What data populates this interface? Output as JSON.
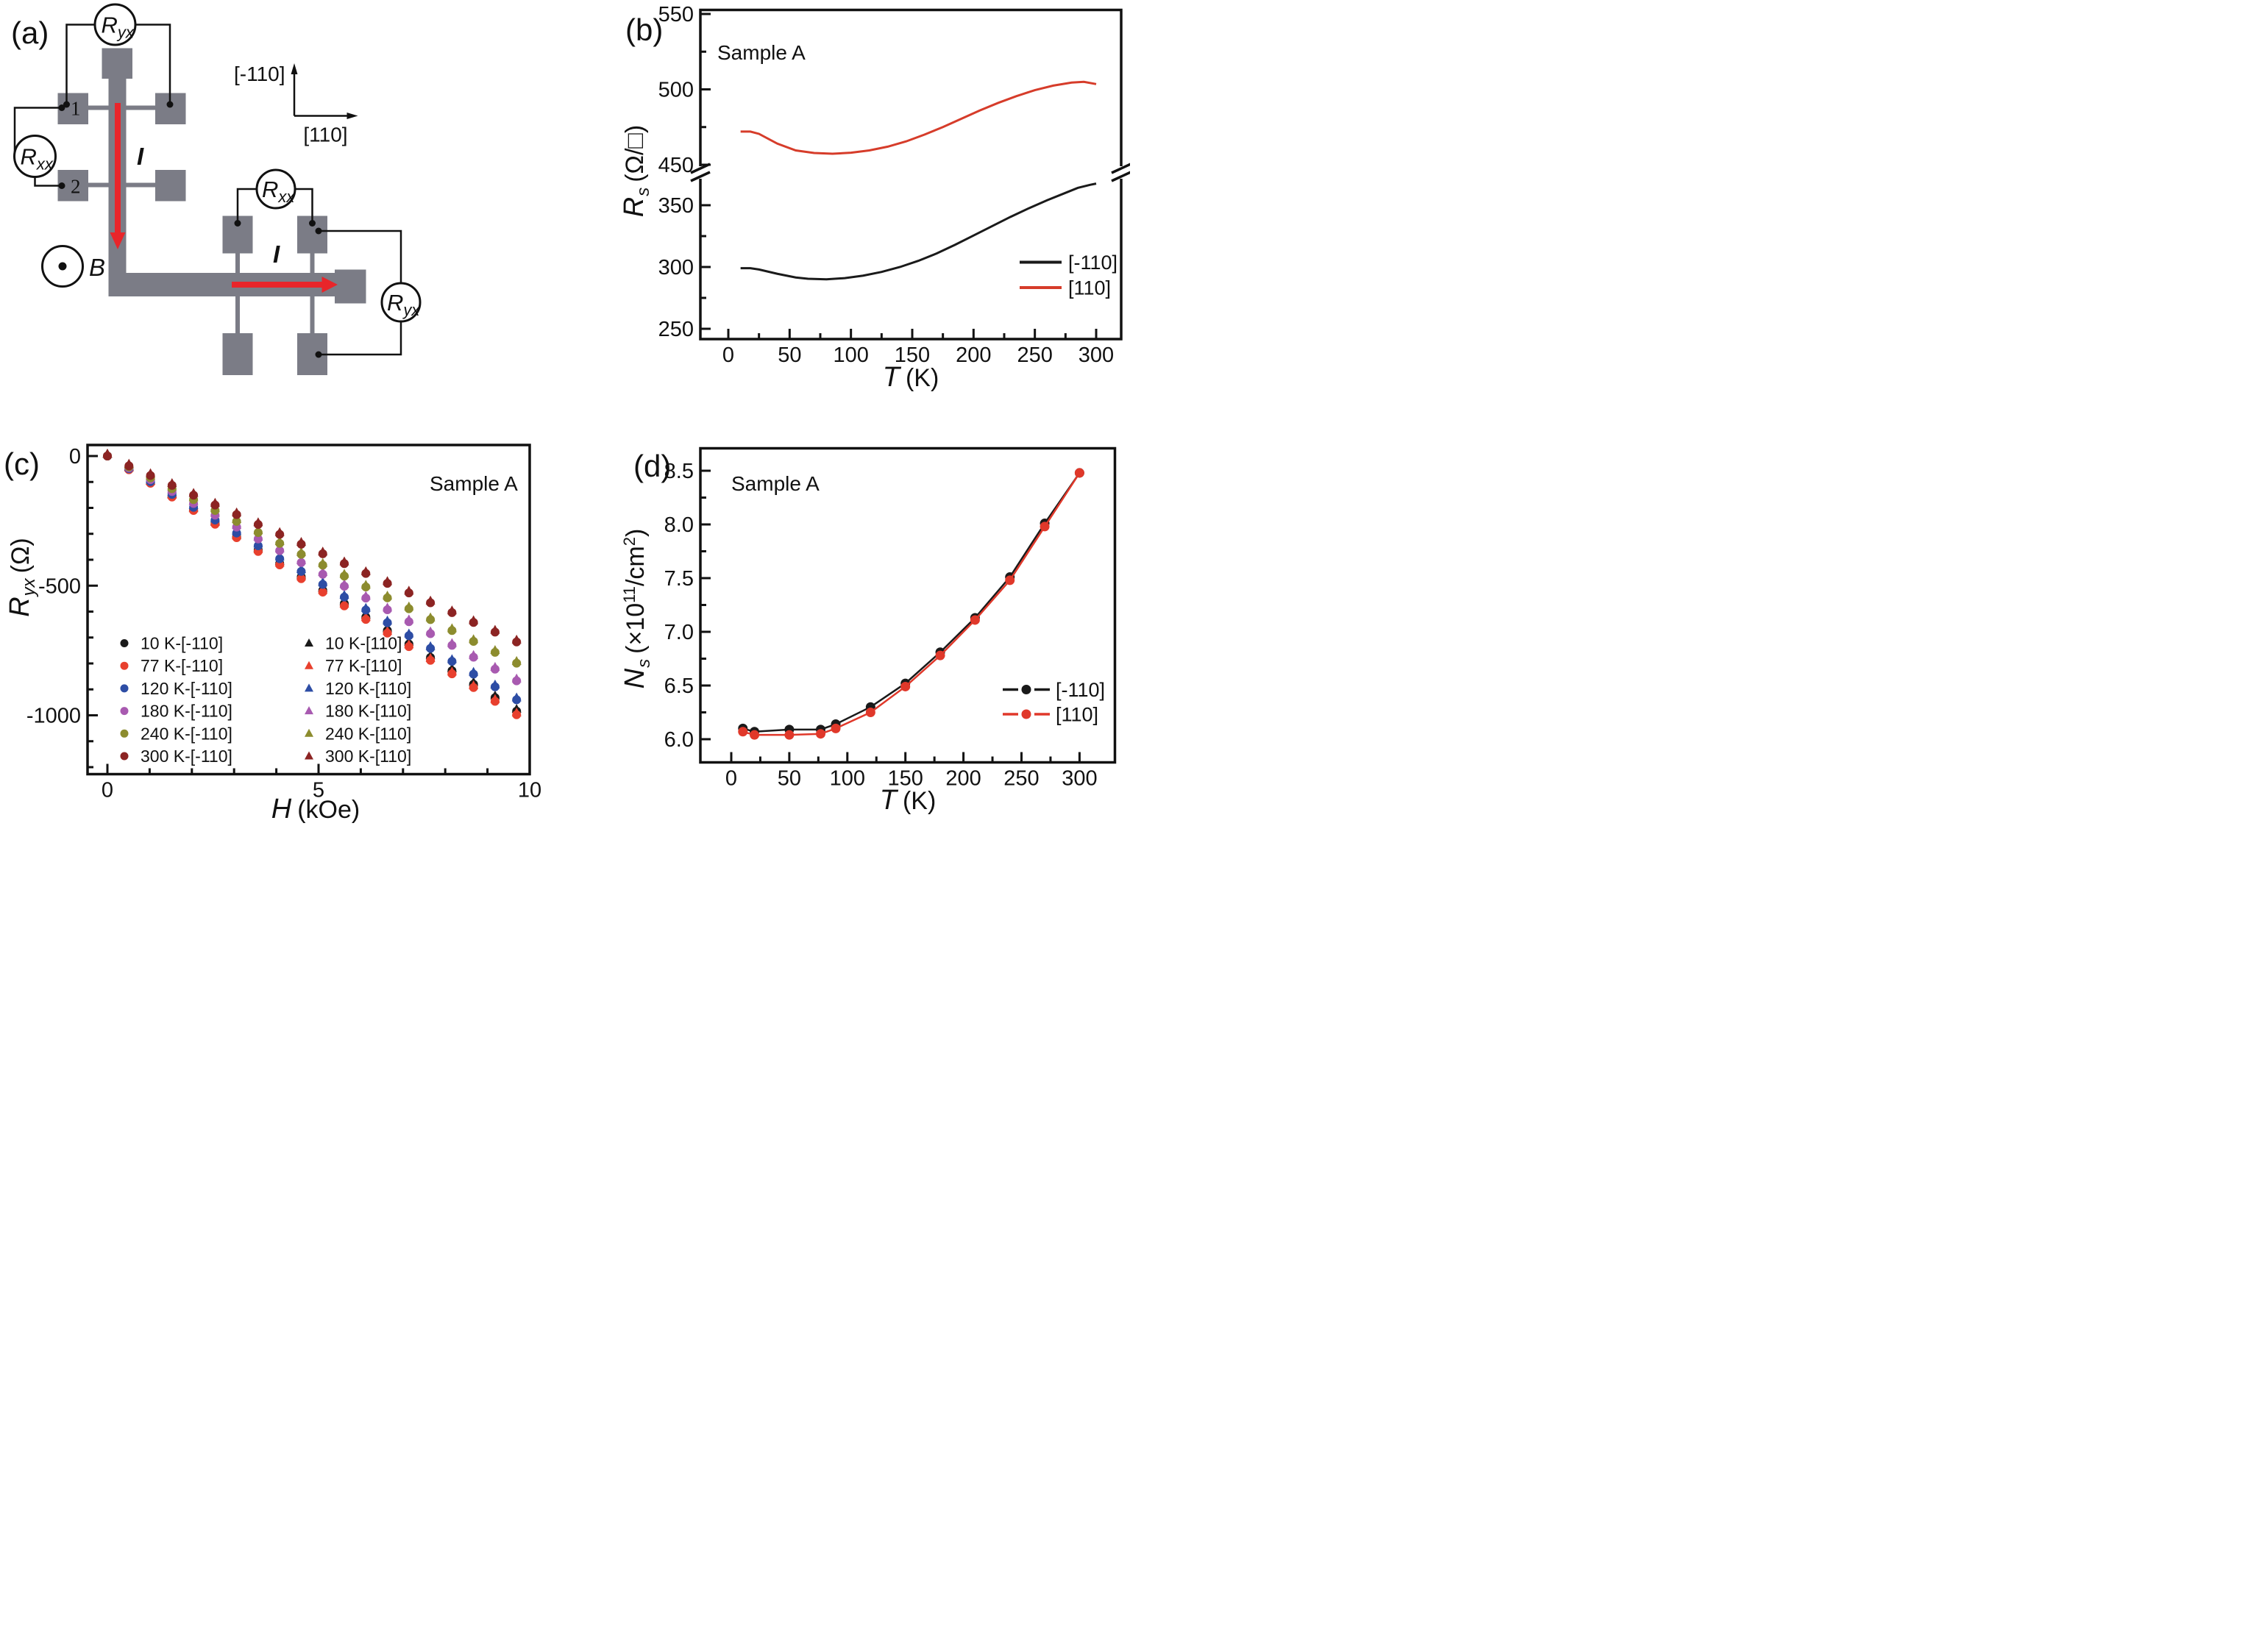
{
  "panel_labels": {
    "a": "(a)",
    "b": "(b)",
    "c": "(c)",
    "d": "(d)"
  },
  "device": {
    "meters": {
      "top": {
        "main": "R",
        "sub": "yx"
      },
      "left": {
        "main": "R",
        "sub": "xx"
      },
      "h_top": {
        "main": "R",
        "sub": "xx"
      },
      "h_right": {
        "main": "R",
        "sub": "yx"
      }
    },
    "contact_1": "1",
    "contact_2": "2",
    "current_label": "I",
    "field_label": "B",
    "crystal_axis_up": "[-110]",
    "crystal_axis_right": "[110]",
    "colors": {
      "bar_gray": "#7b7c86",
      "arrow_red": "#e8252a",
      "contact_number_blue": "#3d55a8",
      "wire_black": "#111111"
    }
  },
  "chart_data": [
    {
      "id": "panel_b",
      "type": "line",
      "panel_label": "(b)",
      "sample_label": "Sample A",
      "xlabel": {
        "symbol": "T",
        "unit": "(K)"
      },
      "ylabel": {
        "symbol": "R",
        "sub": "s",
        "unit": "(Ω/□)"
      },
      "x_axis": {
        "major_ticks": [
          0,
          50,
          100,
          150,
          200,
          250,
          300
        ],
        "minor_ticks": [
          25,
          75,
          125,
          175,
          225,
          275
        ],
        "range": [
          -23,
          321
        ]
      },
      "y_axis": {
        "broken": true,
        "upper_segment": {
          "major_ticks": [
            450,
            500,
            550
          ],
          "minor_ticks": [
            475,
            525
          ],
          "top_value": 553
        },
        "lower_segment": {
          "major_ticks": [
            250,
            300,
            350
          ],
          "minor_ticks": [
            275,
            325
          ],
          "bottom_value": 242
        }
      },
      "legend": [
        {
          "label": "[-110]",
          "color": "#1a1a1a"
        },
        {
          "label": "[110]",
          "color": "#d63c2a"
        }
      ],
      "series": [
        {
          "name": "[-110]",
          "color": "#1a1a1a",
          "axis_segment": "lower",
          "points": [
            [
              10,
              299
            ],
            [
              18,
              299
            ],
            [
              25,
              298
            ],
            [
              40,
              294.5
            ],
            [
              55,
              291.5
            ],
            [
              65,
              290.5
            ],
            [
              80,
              290
            ],
            [
              95,
              291
            ],
            [
              110,
              293
            ],
            [
              125,
              296
            ],
            [
              140,
              300
            ],
            [
              155,
              305
            ],
            [
              170,
              311
            ],
            [
              185,
              318
            ],
            [
              200,
              325.5
            ],
            [
              215,
              333
            ],
            [
              230,
              340.5
            ],
            [
              245,
              347.5
            ],
            [
              260,
              354
            ],
            [
              275,
              360
            ],
            [
              285,
              364
            ],
            [
              295,
              366.5
            ],
            [
              300,
              367.5
            ]
          ]
        },
        {
          "name": "[110]",
          "color": "#d63c2a",
          "axis_segment": "upper",
          "points": [
            [
              10,
              472
            ],
            [
              18,
              472
            ],
            [
              25,
              470.5
            ],
            [
              40,
              464
            ],
            [
              55,
              459.5
            ],
            [
              70,
              457.8
            ],
            [
              85,
              457.3
            ],
            [
              100,
              458
            ],
            [
              115,
              459.5
            ],
            [
              130,
              462
            ],
            [
              145,
              465.5
            ],
            [
              160,
              470
            ],
            [
              175,
              475
            ],
            [
              190,
              480.5
            ],
            [
              205,
              486
            ],
            [
              220,
              491
            ],
            [
              235,
              495.5
            ],
            [
              250,
              499.5
            ],
            [
              265,
              502.5
            ],
            [
              280,
              504.5
            ],
            [
              290,
              505
            ],
            [
              300,
              503.5
            ]
          ]
        }
      ]
    },
    {
      "id": "panel_c",
      "type": "scatter",
      "panel_label": "(c)",
      "sample_label": "Sample A",
      "xlabel": {
        "symbol": "H",
        "unit": "(kOe)"
      },
      "ylabel": {
        "symbol": "R",
        "sub": "yx",
        "unit": "(Ω)"
      },
      "x_axis": {
        "major_ticks": [
          0,
          5,
          10
        ],
        "minor_ticks": [
          1,
          2,
          3,
          4,
          6,
          7,
          8,
          9
        ],
        "range": [
          -0.47,
          10.0
        ]
      },
      "y_axis": {
        "major_ticks": [
          0,
          -500,
          -1000
        ],
        "minor_ticks": [
          -100,
          -200,
          -300,
          -400,
          -600,
          -700,
          -800,
          -900,
          -1100,
          -1200
        ],
        "range": [
          42,
          -1227
        ]
      },
      "h_values": [
        0,
        0.51,
        1.02,
        1.53,
        2.04,
        2.55,
        3.06,
        3.57,
        4.08,
        4.59,
        5.1,
        5.61,
        6.12,
        6.63,
        7.14,
        7.65,
        8.16,
        8.67,
        9.18,
        9.69
      ],
      "temperatures": [
        "10 K",
        "77 K",
        "120 K",
        "180 K",
        "240 K",
        "300 K"
      ],
      "colors": [
        "#1a1a1a",
        "#e8402e",
        "#2d4da5",
        "#a85ab0",
        "#8c8c2e",
        "#8c2423"
      ],
      "ryx": [
        [
          0,
          -52,
          -104,
          -155,
          -207,
          -259,
          -311,
          -362,
          -414,
          -466,
          -518,
          -569,
          -621,
          -673,
          -725,
          -777,
          -828,
          -880,
          -932,
          -984
        ],
        [
          0,
          -53,
          -105,
          -158,
          -210,
          -263,
          -315,
          -368,
          -420,
          -473,
          -525,
          -578,
          -630,
          -683,
          -735,
          -788,
          -840,
          -893,
          -946,
          -998
        ],
        [
          0,
          -49,
          -99,
          -148,
          -198,
          -247,
          -297,
          -346,
          -396,
          -445,
          -495,
          -544,
          -594,
          -643,
          -693,
          -742,
          -792,
          -841,
          -890,
          -940
        ],
        [
          0,
          -46,
          -91,
          -137,
          -183,
          -228,
          -274,
          -320,
          -365,
          -411,
          -456,
          -502,
          -548,
          -593,
          -639,
          -685,
          -730,
          -776,
          -822,
          -867
        ],
        [
          0,
          -42,
          -84,
          -126,
          -168,
          -210,
          -252,
          -295,
          -337,
          -379,
          -421,
          -463,
          -505,
          -547,
          -589,
          -631,
          -673,
          -715,
          -757,
          -799
        ],
        [
          0,
          -38,
          -75,
          -113,
          -151,
          -189,
          -226,
          -264,
          -302,
          -340,
          -377,
          -415,
          -453,
          -491,
          -528,
          -566,
          -604,
          -642,
          -679,
          -717
        ]
      ],
      "triangle_offset_ohm": 8,
      "orientations": [
        {
          "suffix": "[-110]",
          "marker": "circle"
        },
        {
          "suffix": "[110]",
          "marker": "triangle"
        }
      ],
      "legend_left": [
        "10 K-[-110]",
        "77 K-[-110]",
        "120 K-[-110]",
        "180 K-[-110]",
        "240 K-[-110]",
        "300 K-[-110]"
      ],
      "legend_right": [
        "10 K-[110]",
        "77 K-[110]",
        "120 K-[110]",
        "180 K-[110]",
        "240 K-[110]",
        "300 K-[110]"
      ]
    },
    {
      "id": "panel_d",
      "type": "line",
      "panel_label": "(d)",
      "sample_label": "Sample A",
      "xlabel": {
        "symbol": "T",
        "unit": "(K)"
      },
      "ylabel": {
        "symbol": "N",
        "sub": "s",
        "unit_prefix": "(×10",
        "sup1": "11",
        "unit_mid": "/cm",
        "sup2": "2",
        "unit_end": ")"
      },
      "x_axis": {
        "major_ticks": [
          0,
          50,
          100,
          150,
          200,
          250,
          300
        ],
        "minor_ticks": [
          25,
          75,
          125,
          175,
          225,
          275
        ]
      },
      "y_axis": {
        "major_tick_labels": [
          "6.0",
          "6.5",
          "7.0",
          "7.5",
          "8.0",
          "8.5"
        ],
        "major_ticks": [
          6.0,
          6.5,
          7.0,
          7.5,
          8.0,
          8.5
        ],
        "minor_ticks": [
          6.25,
          6.75,
          7.25,
          7.75,
          8.25
        ],
        "range": [
          5.78,
          8.7
        ]
      },
      "t_values": [
        10,
        20,
        50,
        77,
        90,
        120,
        150,
        180,
        210,
        240,
        270,
        300
      ],
      "series": [
        {
          "name": "[-110]",
          "color": "#1a1a1a",
          "ns": [
            6.1,
            6.07,
            6.09,
            6.09,
            6.14,
            6.3,
            6.52,
            6.81,
            7.13,
            7.51,
            8.01,
            8.48
          ]
        },
        {
          "name": "[110]",
          "color": "#e0382a",
          "ns": [
            6.07,
            6.04,
            6.04,
            6.05,
            6.1,
            6.25,
            6.49,
            6.78,
            7.11,
            7.48,
            7.98,
            8.48
          ]
        }
      ],
      "legend": [
        {
          "label": "[-110]",
          "color": "#1a1a1a"
        },
        {
          "label": "[110]",
          "color": "#e0382a"
        }
      ]
    }
  ]
}
